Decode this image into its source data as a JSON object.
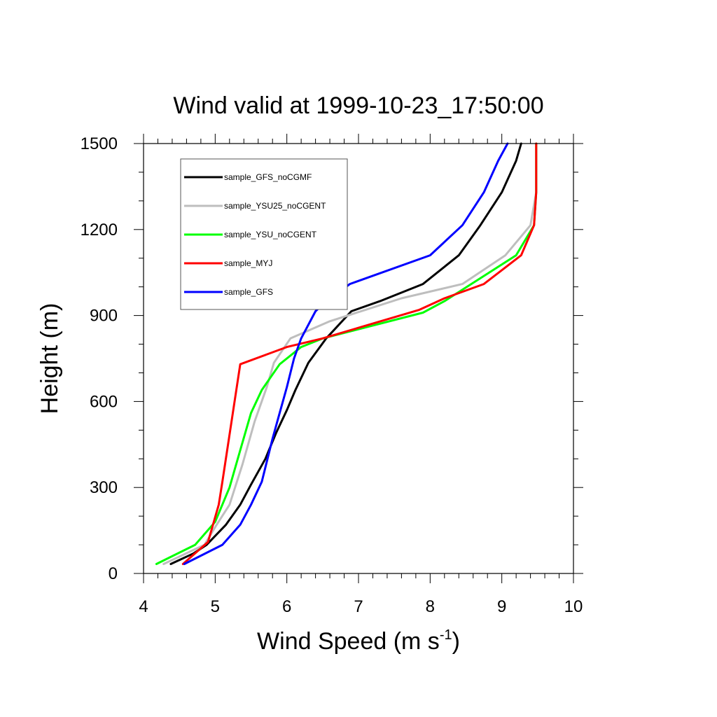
{
  "chart_data": {
    "type": "line",
    "title": "Wind valid at 1999-10-23_17:50:00",
    "xlabel": "Wind Speed (m s",
    "xlabel_sup": "-1",
    "xlabel_end": ")",
    "ylabel": "Height (m)",
    "xlim": [
      4,
      10
    ],
    "ylim": [
      0,
      1500
    ],
    "xticks": [
      4,
      5,
      6,
      7,
      8,
      9,
      10
    ],
    "yticks": [
      0,
      300,
      600,
      900,
      1200,
      1500
    ],
    "xtick_labels": [
      "4",
      "5",
      "6",
      "7",
      "8",
      "9",
      "10"
    ],
    "ytick_labels": [
      "0",
      "300",
      "600",
      "900",
      "1200",
      "1500"
    ],
    "legend_position": "top-left",
    "grid": false,
    "series": [
      {
        "name": "sample_GFS_noCGMF",
        "color": "#000000",
        "points": [
          [
            4.38,
            33
          ],
          [
            4.7,
            70
          ],
          [
            4.88,
            100
          ],
          [
            5.15,
            170
          ],
          [
            5.35,
            240
          ],
          [
            5.5,
            310
          ],
          [
            5.7,
            400
          ],
          [
            5.85,
            490
          ],
          [
            6.0,
            570
          ],
          [
            6.12,
            640
          ],
          [
            6.3,
            735
          ],
          [
            6.55,
            820
          ],
          [
            6.9,
            915
          ],
          [
            7.3,
            950
          ],
          [
            7.9,
            1010
          ],
          [
            8.4,
            1110
          ],
          [
            8.7,
            1215
          ],
          [
            9.0,
            1330
          ],
          [
            9.2,
            1440
          ],
          [
            9.27,
            1500
          ]
        ]
      },
      {
        "name": "sample_YSU25_noCGENT",
        "color": "#bebebe",
        "points": [
          [
            4.28,
            33
          ],
          [
            4.85,
            100
          ],
          [
            5.02,
            170
          ],
          [
            5.2,
            240
          ],
          [
            5.38,
            380
          ],
          [
            5.55,
            530
          ],
          [
            5.72,
            650
          ],
          [
            5.82,
            735
          ],
          [
            6.05,
            820
          ],
          [
            6.6,
            880
          ],
          [
            7.1,
            920
          ],
          [
            7.6,
            960
          ],
          [
            8.45,
            1010
          ],
          [
            9.05,
            1110
          ],
          [
            9.4,
            1215
          ],
          [
            9.48,
            1330
          ],
          [
            9.48,
            1500
          ]
        ]
      },
      {
        "name": "sample_YSU_noCGENT",
        "color": "#00ff00",
        "points": [
          [
            4.18,
            33
          ],
          [
            4.72,
            100
          ],
          [
            5.0,
            180
          ],
          [
            5.2,
            300
          ],
          [
            5.35,
            430
          ],
          [
            5.5,
            560
          ],
          [
            5.65,
            640
          ],
          [
            5.9,
            730
          ],
          [
            6.2,
            790
          ],
          [
            6.5,
            820
          ],
          [
            7.9,
            910
          ],
          [
            8.2,
            950
          ],
          [
            8.7,
            1030
          ],
          [
            9.2,
            1110
          ],
          [
            9.45,
            1215
          ],
          [
            9.48,
            1330
          ],
          [
            9.48,
            1500
          ]
        ]
      },
      {
        "name": "sample_MYJ",
        "color": "#ff0000",
        "points": [
          [
            4.55,
            33
          ],
          [
            4.9,
            110
          ],
          [
            5.05,
            240
          ],
          [
            5.1,
            320
          ],
          [
            5.35,
            730
          ],
          [
            6.0,
            790
          ],
          [
            6.5,
            820
          ],
          [
            7.85,
            920
          ],
          [
            8.2,
            960
          ],
          [
            8.75,
            1010
          ],
          [
            9.27,
            1110
          ],
          [
            9.45,
            1215
          ],
          [
            9.48,
            1330
          ],
          [
            9.48,
            1500
          ]
        ]
      },
      {
        "name": "sample_GFS",
        "color": "#0000ff",
        "points": [
          [
            4.57,
            33
          ],
          [
            5.1,
            100
          ],
          [
            5.35,
            170
          ],
          [
            5.5,
            240
          ],
          [
            5.65,
            320
          ],
          [
            5.8,
            470
          ],
          [
            5.9,
            560
          ],
          [
            6.0,
            650
          ],
          [
            6.1,
            750
          ],
          [
            6.2,
            820
          ],
          [
            6.4,
            915
          ],
          [
            6.55,
            950
          ],
          [
            6.88,
            1010
          ],
          [
            8.0,
            1110
          ],
          [
            8.45,
            1215
          ],
          [
            8.75,
            1330
          ],
          [
            8.95,
            1440
          ],
          [
            9.08,
            1500
          ]
        ]
      }
    ]
  }
}
